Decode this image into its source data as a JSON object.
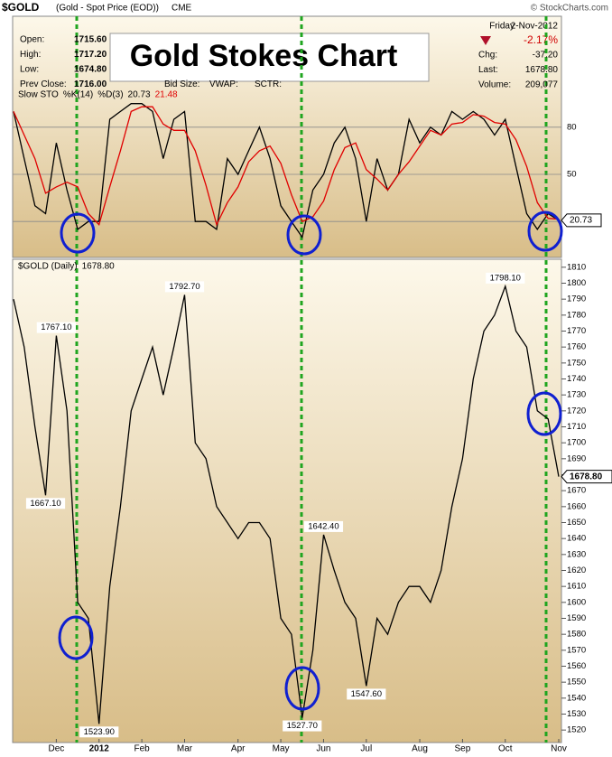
{
  "header": {
    "symbol": "$GOLD",
    "description": "(Gold - Spot Price (EOD))",
    "exchange": "CME",
    "credit": "© StockCharts.com"
  },
  "title": "Gold Stokes Chart",
  "quote": {
    "day": "Friday",
    "date": "2-Nov-2012",
    "change_pct": "-2.17%",
    "left": [
      {
        "label": "Open:",
        "value": "1715.60"
      },
      {
        "label": "High:",
        "value": "1717.20"
      },
      {
        "label": "Low:",
        "value": "1674.80"
      },
      {
        "label": "Prev Close:",
        "value": "1716.00"
      }
    ],
    "extra": [
      "Bid Size:",
      "VWAP:",
      "SCTR:"
    ],
    "right": [
      {
        "label": "Chg:",
        "value": "-37.20"
      },
      {
        "label": "Last:",
        "value": "1678.80"
      },
      {
        "label": "Volume:",
        "value": "209,077"
      }
    ]
  },
  "chart_data": [
    {
      "type": "line",
      "title": "Slow STO",
      "ylim": [
        0,
        100
      ],
      "yticks": [
        20,
        50,
        80
      ],
      "grid": true,
      "series": [
        {
          "name": "%K(14)",
          "color": "#000000",
          "values": [
            90,
            60,
            30,
            25,
            70,
            40,
            15,
            20,
            20,
            85,
            90,
            95,
            95,
            90,
            60,
            85,
            90,
            20,
            20,
            15,
            60,
            50,
            65,
            80,
            60,
            30,
            20,
            10,
            40,
            50,
            70,
            80,
            60,
            20,
            60,
            40,
            50,
            85,
            70,
            80,
            75,
            90,
            85,
            90,
            85,
            75,
            85,
            55,
            25,
            15,
            25,
            20.73
          ],
          "value_labels": [
            null,
            null,
            null,
            null,
            null,
            null,
            null,
            null,
            null,
            null,
            null,
            null,
            null,
            null,
            null,
            null,
            null,
            null,
            null,
            null,
            null,
            null,
            null,
            null,
            null,
            null,
            null,
            null,
            null,
            null,
            null,
            null,
            null,
            null,
            null,
            null,
            null,
            null,
            null,
            null,
            null,
            null,
            null,
            null,
            null,
            null,
            null,
            null,
            null,
            null,
            null,
            "20.73"
          ]
        },
        {
          "name": "%D(3)",
          "color": "#e00000",
          "values": [
            90,
            75,
            60,
            38,
            42,
            45,
            42,
            25,
            18,
            42,
            65,
            90,
            93,
            93,
            82,
            78,
            78,
            65,
            43,
            18,
            32,
            42,
            58,
            65,
            68,
            57,
            37,
            20,
            23,
            33,
            53,
            67,
            70,
            53,
            47,
            40,
            50,
            58,
            68,
            78,
            75,
            82,
            83,
            88,
            87,
            83,
            82,
            72,
            55,
            32,
            22,
            21.48
          ],
          "value_labels": [
            null,
            null,
            null,
            null,
            null,
            null,
            null,
            null,
            null,
            null,
            null,
            null,
            null,
            null,
            null,
            null,
            null,
            null,
            null,
            null,
            null,
            null,
            null,
            null,
            null,
            null,
            null,
            null,
            null,
            null,
            null,
            null,
            null,
            null,
            null,
            null,
            null,
            null,
            null,
            null,
            null,
            null,
            null,
            null,
            null,
            null,
            null,
            null,
            null,
            null,
            null,
            "21.48"
          ]
        }
      ]
    },
    {
      "type": "line",
      "ylim": [
        1515,
        1815
      ],
      "yticks": [
        1520,
        1530,
        1540,
        1550,
        1560,
        1570,
        1580,
        1590,
        1600,
        1610,
        1620,
        1630,
        1640,
        1650,
        1660,
        1670,
        1680,
        1690,
        1700,
        1710,
        1720,
        1730,
        1740,
        1750,
        1760,
        1770,
        1780,
        1790,
        1800,
        1810
      ],
      "categories": [
        null,
        null,
        null,
        null,
        "Dec",
        null,
        null,
        null,
        "2012",
        null,
        null,
        null,
        "Feb",
        null,
        null,
        null,
        "Mar",
        null,
        null,
        null,
        null,
        "Apr",
        null,
        null,
        null,
        "May",
        null,
        null,
        null,
        "Jun",
        null,
        null,
        null,
        "Jul",
        null,
        null,
        null,
        null,
        "Aug",
        null,
        null,
        null,
        "Sep",
        null,
        null,
        null,
        "Oct",
        null,
        null,
        null,
        null,
        "Nov"
      ],
      "series": [
        {
          "name": "$GOLD (Daily)",
          "color": "#000000",
          "values": [
            1790,
            1760,
            1710,
            1667.1,
            1767.1,
            1720,
            1600,
            1590,
            1523.9,
            1610,
            1660,
            1720,
            1740,
            1760,
            1730,
            1760,
            1792.7,
            1700,
            1690,
            1660,
            1650,
            1640,
            1650,
            1650,
            1640,
            1590,
            1580,
            1527.7,
            1570,
            1642.4,
            1620,
            1600,
            1590,
            1547.6,
            1590,
            1580,
            1600,
            1610,
            1610,
            1600,
            1620,
            1660,
            1690,
            1740,
            1770,
            1780,
            1798.1,
            1770,
            1760,
            1720,
            1715,
            1678.8
          ],
          "value_labels": [
            null,
            null,
            null,
            "1667.10",
            "1767.10",
            null,
            null,
            null,
            "1523.90",
            null,
            null,
            null,
            null,
            null,
            null,
            null,
            "1792.70",
            null,
            null,
            null,
            null,
            null,
            null,
            null,
            null,
            null,
            null,
            "1527.70",
            null,
            "1642.40",
            null,
            null,
            null,
            "1547.60",
            null,
            null,
            null,
            null,
            null,
            null,
            null,
            null,
            null,
            null,
            null,
            null,
            "1798.10",
            null,
            null,
            null,
            null,
            "1678.80"
          ]
        }
      ]
    }
  ]
}
